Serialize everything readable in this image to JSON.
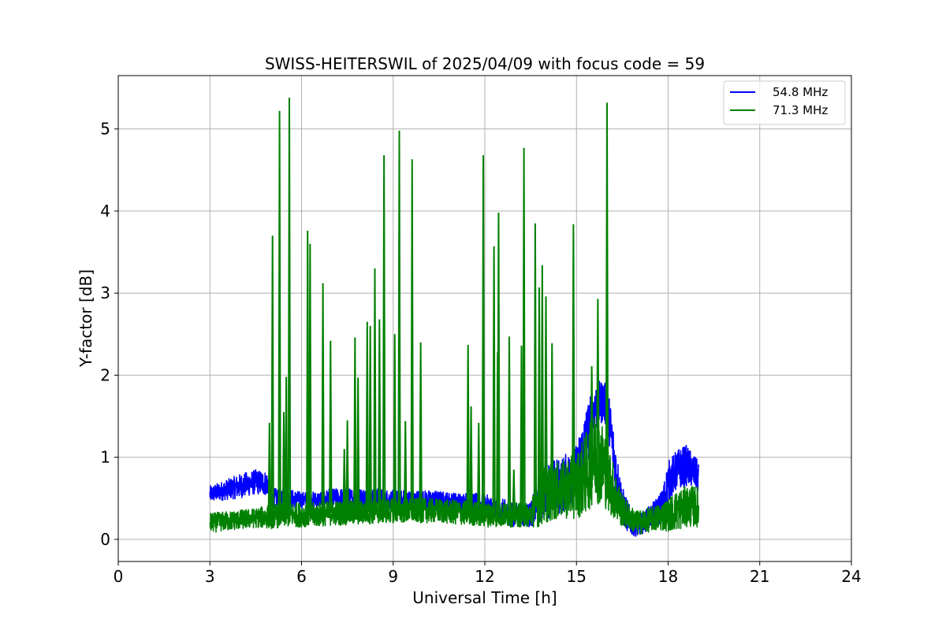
{
  "chart_data": {
    "type": "line",
    "title": "SWISS-HEITERSWIL of 2025/04/09 with focus code = 59",
    "xlabel": "Universal Time [h]",
    "ylabel": "Y-factor [dB]",
    "xlim": [
      0,
      24
    ],
    "ylim": [
      -0.27,
      5.65
    ],
    "xticks": [
      0,
      3,
      6,
      9,
      12,
      15,
      18,
      21,
      24
    ],
    "xtick_labels": [
      "0",
      "3",
      "6",
      "9",
      "12",
      "15",
      "18",
      "21",
      "24"
    ],
    "yticks": [
      0,
      1,
      2,
      3,
      4,
      5
    ],
    "ytick_labels": [
      "0",
      "1",
      "2",
      "3",
      "4",
      "5"
    ],
    "grid": true,
    "legend_position": "top-right",
    "series": [
      {
        "name": "54.8 MHz",
        "color": "#0000ff",
        "x": [
          3.0,
          3.5,
          4.0,
          4.5,
          4.9,
          5.0,
          5.5,
          6.0,
          6.5,
          7.0,
          7.5,
          8.0,
          8.5,
          9.0,
          9.5,
          10.0,
          10.5,
          11.0,
          11.5,
          12.0,
          12.5,
          13.0,
          13.5,
          13.8,
          14.0,
          14.5,
          15.0,
          15.3,
          15.6,
          15.9,
          16.1,
          16.3,
          16.5,
          16.8,
          17.0,
          17.5,
          17.8,
          18.0,
          18.3,
          18.6,
          18.9,
          19.0
        ],
        "y": [
          0.55,
          0.6,
          0.65,
          0.7,
          0.68,
          0.5,
          0.5,
          0.48,
          0.48,
          0.5,
          0.5,
          0.5,
          0.5,
          0.48,
          0.48,
          0.48,
          0.47,
          0.45,
          0.45,
          0.4,
          0.35,
          0.3,
          0.3,
          0.5,
          0.6,
          0.65,
          0.8,
          1.2,
          1.6,
          1.7,
          1.4,
          0.8,
          0.4,
          0.2,
          0.15,
          0.3,
          0.4,
          0.7,
          0.85,
          0.9,
          0.8,
          0.75
        ],
        "envelope": [
          0.1,
          0.12,
          0.15,
          0.15,
          0.15,
          0.12,
          0.12,
          0.1,
          0.1,
          0.12,
          0.12,
          0.12,
          0.12,
          0.12,
          0.12,
          0.12,
          0.12,
          0.12,
          0.12,
          0.15,
          0.15,
          0.15,
          0.15,
          0.3,
          0.35,
          0.35,
          0.35,
          0.4,
          0.3,
          0.25,
          0.3,
          0.3,
          0.25,
          0.15,
          0.12,
          0.15,
          0.2,
          0.25,
          0.25,
          0.25,
          0.2,
          0.2
        ]
      },
      {
        "name": "71.3 MHz",
        "color": "#008000",
        "x": [
          3.0,
          3.5,
          4.0,
          4.5,
          5.0,
          5.5,
          6.0,
          6.5,
          7.0,
          7.5,
          8.0,
          8.5,
          9.0,
          9.5,
          10.0,
          10.5,
          11.0,
          11.5,
          12.0,
          12.5,
          13.0,
          13.5,
          13.8,
          14.0,
          14.5,
          15.0,
          15.3,
          15.6,
          15.9,
          16.2,
          16.5,
          16.8,
          17.0,
          17.5,
          18.0,
          18.3,
          18.6,
          19.0
        ],
        "y": [
          0.2,
          0.22,
          0.24,
          0.26,
          0.28,
          0.3,
          0.3,
          0.3,
          0.32,
          0.32,
          0.33,
          0.34,
          0.35,
          0.35,
          0.35,
          0.35,
          0.33,
          0.32,
          0.3,
          0.3,
          0.3,
          0.3,
          0.5,
          0.55,
          0.6,
          0.65,
          0.8,
          1.0,
          0.9,
          0.6,
          0.35,
          0.25,
          0.2,
          0.25,
          0.3,
          0.35,
          0.4,
          0.4
        ],
        "envelope": [
          0.12,
          0.12,
          0.12,
          0.12,
          0.15,
          0.15,
          0.15,
          0.15,
          0.15,
          0.15,
          0.15,
          0.15,
          0.15,
          0.15,
          0.15,
          0.15,
          0.15,
          0.15,
          0.15,
          0.15,
          0.15,
          0.15,
          0.35,
          0.35,
          0.35,
          0.4,
          0.5,
          0.55,
          0.5,
          0.35,
          0.2,
          0.15,
          0.15,
          0.15,
          0.2,
          0.25,
          0.25,
          0.25
        ],
        "spikes": [
          {
            "x": 4.95,
            "y": 1.42
          },
          {
            "x": 5.05,
            "y": 3.7
          },
          {
            "x": 5.28,
            "y": 5.22
          },
          {
            "x": 5.42,
            "y": 1.55
          },
          {
            "x": 5.5,
            "y": 1.98
          },
          {
            "x": 5.6,
            "y": 5.38
          },
          {
            "x": 6.2,
            "y": 3.76
          },
          {
            "x": 6.28,
            "y": 3.6
          },
          {
            "x": 6.7,
            "y": 3.12
          },
          {
            "x": 6.95,
            "y": 2.42
          },
          {
            "x": 7.4,
            "y": 1.1
          },
          {
            "x": 7.5,
            "y": 1.45
          },
          {
            "x": 7.75,
            "y": 2.46
          },
          {
            "x": 7.85,
            "y": 1.97
          },
          {
            "x": 8.15,
            "y": 2.65
          },
          {
            "x": 8.25,
            "y": 2.6
          },
          {
            "x": 8.4,
            "y": 3.3
          },
          {
            "x": 8.55,
            "y": 2.68
          },
          {
            "x": 8.7,
            "y": 4.68
          },
          {
            "x": 9.05,
            "y": 2.5
          },
          {
            "x": 9.2,
            "y": 4.98
          },
          {
            "x": 9.4,
            "y": 1.44
          },
          {
            "x": 9.62,
            "y": 4.63
          },
          {
            "x": 9.9,
            "y": 2.4
          },
          {
            "x": 11.45,
            "y": 2.37
          },
          {
            "x": 11.55,
            "y": 1.62
          },
          {
            "x": 11.8,
            "y": 1.42
          },
          {
            "x": 11.95,
            "y": 4.68
          },
          {
            "x": 12.3,
            "y": 3.57
          },
          {
            "x": 12.42,
            "y": 2.28
          },
          {
            "x": 12.45,
            "y": 3.98
          },
          {
            "x": 12.8,
            "y": 2.47
          },
          {
            "x": 12.95,
            "y": 0.85
          },
          {
            "x": 13.2,
            "y": 2.36
          },
          {
            "x": 13.28,
            "y": 4.77
          },
          {
            "x": 13.65,
            "y": 3.85
          },
          {
            "x": 13.78,
            "y": 3.07
          },
          {
            "x": 13.88,
            "y": 3.34
          },
          {
            "x": 14.0,
            "y": 2.96
          },
          {
            "x": 14.2,
            "y": 2.39
          },
          {
            "x": 14.9,
            "y": 3.84
          },
          {
            "x": 15.5,
            "y": 2.11
          },
          {
            "x": 15.7,
            "y": 2.93
          },
          {
            "x": 16.0,
            "y": 5.32
          }
        ]
      }
    ]
  }
}
